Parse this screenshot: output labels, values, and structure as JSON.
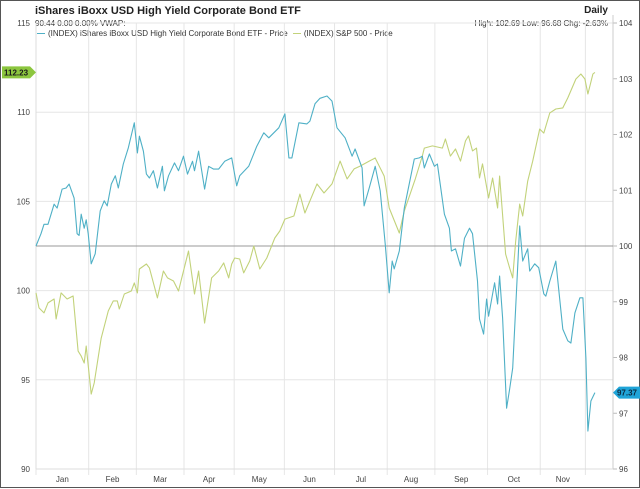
{
  "header": {
    "title": "iShares iBoxx USD High Yield Corporate Bond ETF",
    "quote": "90.44 0.00 0.00%  VWAP:",
    "period": "Daily",
    "stats": "High: 102.69 Low: 96.68 Chg: -2.63%"
  },
  "chart_data": {
    "type": "line",
    "title": "iShares iBoxx USD High Yield Corporate Bond ETF",
    "x_unit": "trading day index",
    "xlim": [
      0,
      230
    ],
    "month_ticks": [
      {
        "label": "Jan",
        "start": 0,
        "end": 21
      },
      {
        "label": "Feb",
        "start": 21,
        "end": 40
      },
      {
        "label": "Mar",
        "start": 40,
        "end": 59
      },
      {
        "label": "Apr",
        "start": 59,
        "end": 79
      },
      {
        "label": "May",
        "start": 79,
        "end": 99
      },
      {
        "label": "Jun",
        "start": 99,
        "end": 119
      },
      {
        "label": "Jul",
        "start": 119,
        "end": 140
      },
      {
        "label": "Aug",
        "start": 140,
        "end": 159
      },
      {
        "label": "Sep",
        "start": 159,
        "end": 180
      },
      {
        "label": "Oct",
        "start": 180,
        "end": 201
      },
      {
        "label": "Nov",
        "start": 201,
        "end": 219
      },
      {
        "label": "",
        "start": 219,
        "end": 230
      }
    ],
    "left_axis": {
      "ylim": [
        90,
        115
      ],
      "ticks": [
        "90",
        "95",
        "100",
        "105",
        "110",
        "115"
      ]
    },
    "right_axis": {
      "ylim": [
        96,
        104
      ],
      "ticks": [
        "96",
        "97",
        "98",
        "99",
        "100",
        "101",
        "102",
        "103",
        "104"
      ]
    },
    "reference_line": {
      "axis": "right",
      "value": 100
    },
    "grid": true,
    "legend_placement": "top-left",
    "series": [
      {
        "name": "(INDEX) iShares iBoxx USD High Yield Corporate Bond ETF - Price",
        "axis": "right",
        "color": "#4fb0c6",
        "last_label": "97.37",
        "x": [
          0,
          2,
          3.2,
          4.8,
          7.2,
          8.4,
          10.4,
          12,
          13.2,
          15.2,
          16.4,
          17.2,
          18,
          19.2,
          20,
          20.8,
          22,
          23.6,
          25.6,
          27.2,
          28.4,
          30,
          31.6,
          32.8,
          34.8,
          36.8,
          39.2,
          40.4,
          41.2,
          42.8,
          44,
          45.2,
          46.8,
          48.4,
          50.4,
          51.2,
          52.8,
          55.2,
          56.8,
          58.8,
          60.4,
          62.4,
          63.2,
          64.8,
          67.2,
          68.8,
          70.8,
          72.8,
          75.2,
          78,
          80,
          81.2,
          84.8,
          88,
          90.8,
          92.8,
          96.8,
          99.2,
          100.8,
          102,
          104.8,
          108,
          109.2,
          111.2,
          113.2,
          116,
          118,
          120,
          123.2,
          126,
          127.2,
          130,
          130.8,
          132.8,
          135.2,
          137.2,
          139.2,
          140.8,
          142,
          142.8,
          144.8,
          146.8,
          150.8,
          152.8,
          154,
          154.8,
          156.8,
          158.8,
          160,
          162.8,
          164.8,
          165.6,
          167.2,
          169.2,
          170.8,
          172.8,
          174,
          176,
          176.8,
          178.4,
          179.6,
          180.4,
          182.8,
          184,
          184.8,
          186,
          187.6,
          188.8,
          190,
          192.8,
          194,
          196,
          196.8,
          198.8,
          200.4,
          202.4,
          203.2,
          204.8,
          207.2,
          210,
          212,
          213.2,
          214.8,
          216.8,
          218,
          219.2,
          220,
          221.2,
          222.8
        ],
        "y": [
          100.0,
          100.22,
          100.39,
          100.39,
          100.75,
          100.68,
          101.02,
          101.04,
          101.11,
          100.86,
          100.22,
          100.19,
          100.57,
          100.32,
          100.47,
          100.22,
          99.68,
          99.86,
          100.63,
          100.81,
          100.72,
          101.11,
          101.26,
          101.04,
          101.47,
          101.76,
          102.21,
          101.67,
          101.97,
          101.7,
          101.29,
          101.22,
          101.35,
          101.04,
          101.43,
          100.99,
          101.26,
          101.49,
          101.35,
          101.61,
          101.29,
          101.52,
          101.35,
          101.7,
          101.02,
          101.43,
          101.38,
          101.38,
          101.52,
          101.58,
          101.08,
          101.26,
          101.43,
          101.79,
          102.03,
          101.94,
          102.12,
          102.37,
          101.58,
          101.58,
          102.21,
          102.19,
          102.24,
          102.55,
          102.65,
          102.69,
          102.6,
          102.12,
          101.94,
          101.61,
          101.74,
          101.4,
          100.72,
          101.04,
          101.43,
          100.99,
          100.04,
          99.16,
          99.73,
          99.59,
          99.91,
          100.68,
          101.56,
          101.58,
          101.61,
          101.4,
          101.65,
          101.43,
          101.47,
          100.57,
          100.32,
          99.91,
          99.95,
          99.64,
          100.14,
          100.32,
          100.22,
          99.37,
          98.69,
          98.42,
          99.05,
          98.74,
          99.34,
          98.96,
          99.46,
          98.71,
          97.09,
          97.43,
          97.81,
          100.36,
          99.73,
          99.95,
          99.55,
          99.68,
          99.61,
          99.14,
          99.1,
          99.37,
          99.73,
          98.51,
          98.3,
          98.26,
          98.8,
          99.07,
          99.07,
          97.99,
          96.68,
          97.22,
          97.37
        ]
      },
      {
        "name": "(INDEX) S&P 500 - Price",
        "axis": "left",
        "color": "#c2d27a",
        "last_label": "112.23",
        "x": [
          0,
          1.2,
          3.2,
          4.8,
          7.2,
          8,
          10,
          12.4,
          14.8,
          16.8,
          18,
          19.2,
          20,
          22,
          23.2,
          26,
          28.8,
          30.8,
          32.4,
          33.2,
          35.2,
          38,
          39.2,
          40.4,
          41.2,
          44,
          45.2,
          48.4,
          50.8,
          52.4,
          54.8,
          56.8,
          60.8,
          63.2,
          64.8,
          67.2,
          70,
          72.8,
          74.8,
          76.8,
          78,
          79.2,
          81.2,
          82.8,
          85.2,
          86.8,
          89.2,
          92,
          95.2,
          97.2,
          99.2,
          102.8,
          105.2,
          107.2,
          112,
          114.8,
          118,
          121.2,
          124,
          126.8,
          129.2,
          132.8,
          135.2,
          138.8,
          140.8,
          144.8,
          146.8,
          151.2,
          154,
          154.8,
          158,
          162,
          163.2,
          165.2,
          167.2,
          169.2,
          171.2,
          172.4,
          174,
          175.6,
          176.8,
          178,
          180.4,
          182,
          184,
          184.8,
          187.2,
          188.8,
          190,
          191.2,
          192.8,
          194,
          196,
          198,
          200.8,
          202.4,
          204.8,
          207.2,
          210,
          212,
          215.2,
          217.2,
          218.8,
          220,
          222,
          222.8
        ],
        "y": [
          99.87,
          99.03,
          98.75,
          99.31,
          99.53,
          98.41,
          99.87,
          99.53,
          99.7,
          96.61,
          96.33,
          95.94,
          96.89,
          94.2,
          94.82,
          97.34,
          98.86,
          99.42,
          99.42,
          98.97,
          99.81,
          99.98,
          100.43,
          99.87,
          101.21,
          101.49,
          101.27,
          99.59,
          101.1,
          100.71,
          100.54,
          99.98,
          102.22,
          99.81,
          101.1,
          98.18,
          100.71,
          101.1,
          101.55,
          100.71,
          101.49,
          101.83,
          101.77,
          100.99,
          101.66,
          102.5,
          101.21,
          101.83,
          102.95,
          103.34,
          104.01,
          104.18,
          105.41,
          104.35,
          105.98,
          105.47,
          105.98,
          107.26,
          106.26,
          106.82,
          106.98,
          107.26,
          107.43,
          106.42,
          104.63,
          103.23,
          104.46,
          106.26,
          107.54,
          107.99,
          108.11,
          107.99,
          108.5,
          107.54,
          107.94,
          107.26,
          108.39,
          108.67,
          107.83,
          107.99,
          106.31,
          107.1,
          105.19,
          106.31,
          104.63,
          106.42,
          102.05,
          101.27,
          100.71,
          102.78,
          104.85,
          104.18,
          106.14,
          107.26,
          109.06,
          108.83,
          109.96,
          110.18,
          110.24,
          110.8,
          111.86,
          112.14,
          111.86,
          111.02,
          112.14,
          112.23
        ]
      }
    ]
  }
}
